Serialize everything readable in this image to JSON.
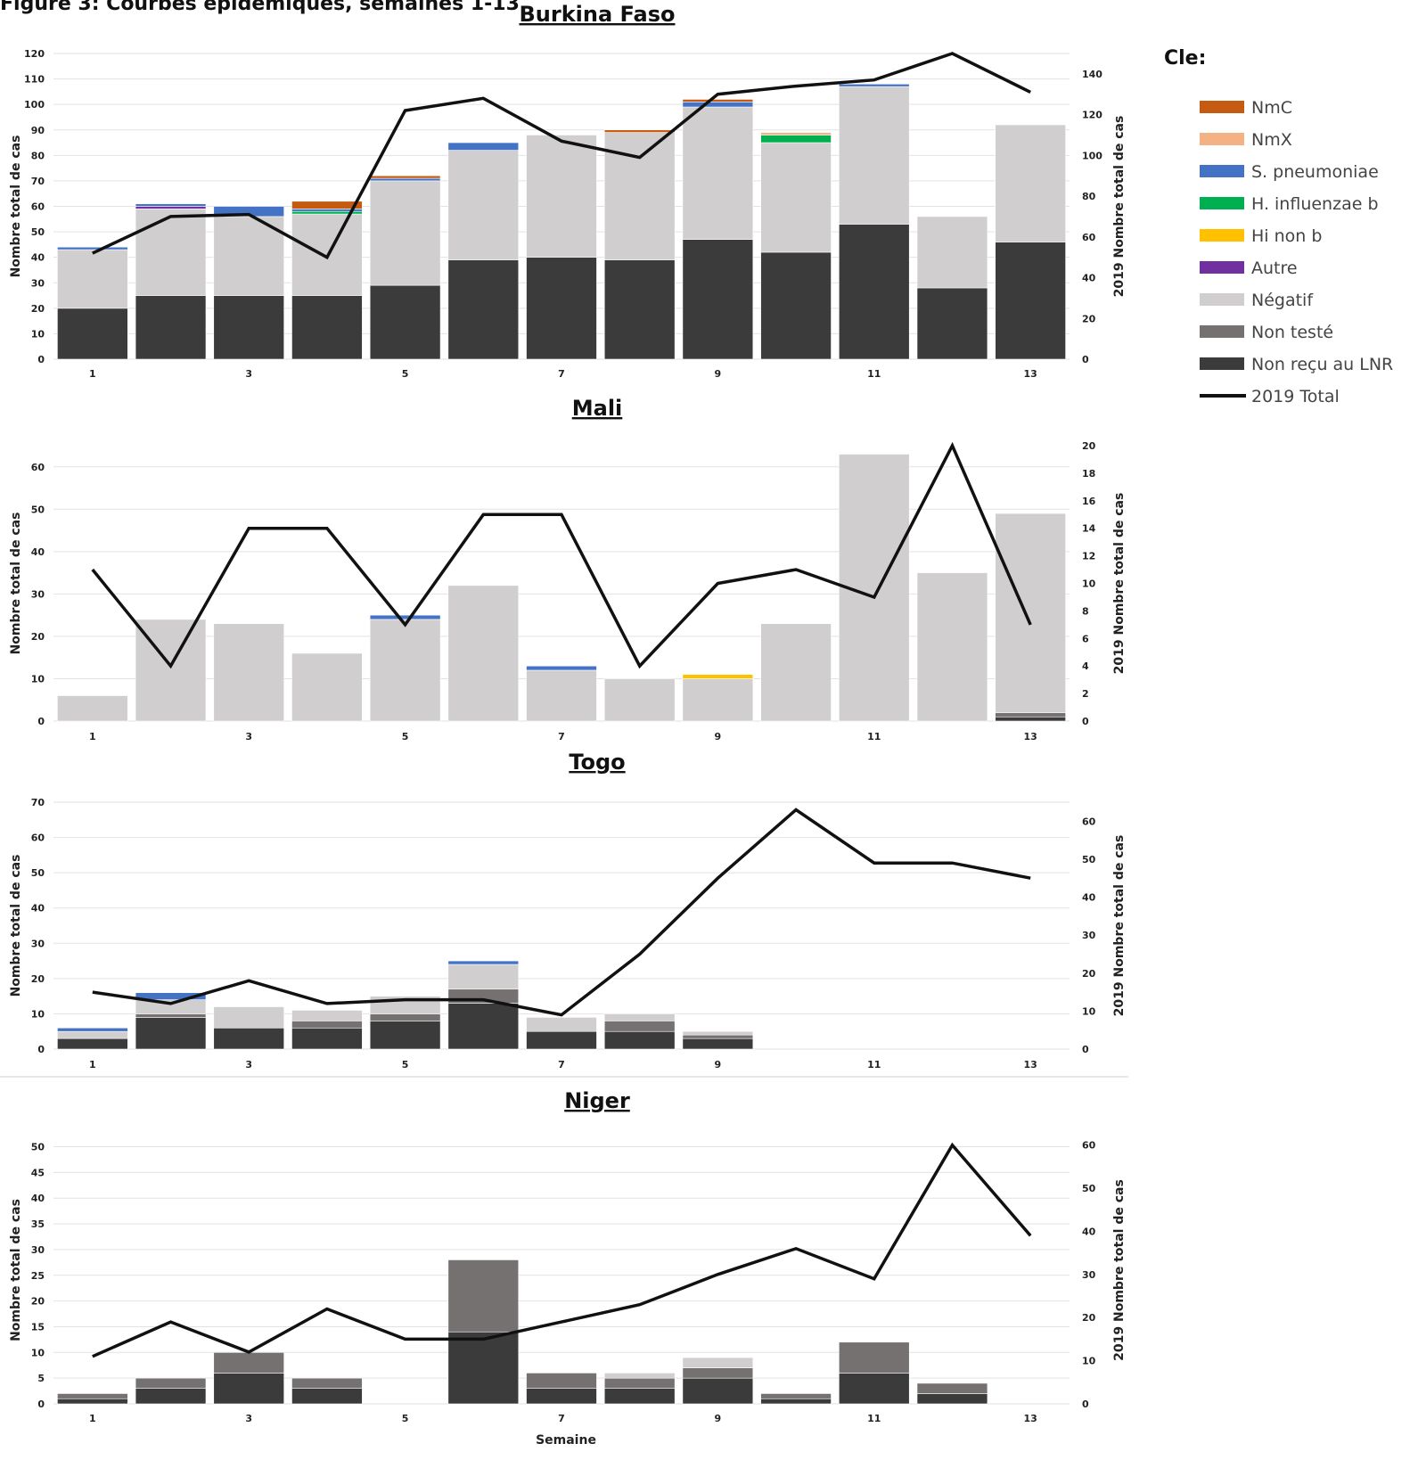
{
  "header": {
    "title": "Figure 3: Courbes épidémiques, semaines 1-13"
  },
  "legend": {
    "title": "Cle:",
    "items": [
      {
        "key": "nmc",
        "label": "NmC",
        "color": "#c55a11",
        "type": "bar"
      },
      {
        "key": "nmx",
        "label": "NmX",
        "color": "#f4b183",
        "type": "bar"
      },
      {
        "key": "spn",
        "label": "S. pneumoniae",
        "color": "#4472c4",
        "type": "bar"
      },
      {
        "key": "hib",
        "label": "H. influenzae b",
        "color": "#00b050",
        "type": "bar"
      },
      {
        "key": "hinb",
        "label": "Hi non b",
        "color": "#ffc000",
        "type": "bar"
      },
      {
        "key": "autre",
        "label": "Autre",
        "color": "#7030a0",
        "type": "bar"
      },
      {
        "key": "neg",
        "label": "Négatif",
        "color": "#d0cece",
        "type": "bar"
      },
      {
        "key": "nt",
        "label": "Non testé",
        "color": "#767171",
        "type": "bar"
      },
      {
        "key": "nr",
        "label": "Non reçu au LNR",
        "color": "#3b3b3b",
        "type": "bar"
      },
      {
        "key": "total2019",
        "label": "2019 Total",
        "color": "#111111",
        "type": "line"
      }
    ]
  },
  "chart_data": [
    {
      "title": "Burkina Faso",
      "type": "bar",
      "stacked": true,
      "x": [
        1,
        2,
        3,
        4,
        5,
        6,
        7,
        8,
        9,
        10,
        11,
        12,
        13
      ],
      "x_tick_labels": [
        "1",
        "3",
        "5",
        "7",
        "9",
        "11",
        "13"
      ],
      "ylabel": "Nombre total de cas",
      "ylabel2": "2019 Nombre total de cas",
      "xlabel": "",
      "ylim": [
        0,
        120
      ],
      "ytick_step": 10,
      "ylim2": [
        0,
        150
      ],
      "ytick_step2": 20,
      "ytick_max2": 140,
      "series": [
        {
          "key": "nr",
          "values": [
            20,
            25,
            25,
            25,
            29,
            39,
            40,
            39,
            47,
            42,
            53,
            28,
            46
          ]
        },
        {
          "key": "nt",
          "values": [
            0,
            0,
            0,
            0,
            0,
            0,
            0,
            0,
            0,
            0,
            0,
            0,
            0
          ]
        },
        {
          "key": "neg",
          "values": [
            23,
            34,
            31,
            32,
            41,
            43,
            48,
            50,
            52,
            43,
            54,
            28,
            46
          ]
        },
        {
          "key": "autre",
          "values": [
            0,
            1,
            0,
            0,
            0,
            0,
            0,
            0,
            0,
            0,
            0,
            0,
            0
          ]
        },
        {
          "key": "hinb",
          "values": [
            0,
            0,
            0,
            0,
            0,
            0,
            0,
            0,
            0,
            0,
            0,
            0,
            0
          ]
        },
        {
          "key": "hib",
          "values": [
            0,
            0,
            0,
            1,
            0,
            0,
            0,
            0,
            0,
            3,
            0,
            0,
            0
          ]
        },
        {
          "key": "spn",
          "values": [
            1,
            1,
            4,
            1,
            1,
            3,
            0,
            0,
            2,
            0,
            1,
            0,
            0
          ]
        },
        {
          "key": "nmx",
          "values": [
            0,
            0,
            0,
            0,
            0,
            0,
            0,
            0,
            0,
            1,
            0,
            0,
            0
          ]
        },
        {
          "key": "nmc",
          "values": [
            0,
            0,
            0,
            3,
            1,
            0,
            0,
            1,
            1,
            0,
            0,
            0,
            0
          ]
        }
      ],
      "total2019": [
        52,
        70,
        71,
        50,
        122,
        128,
        107,
        99,
        130,
        134,
        137,
        150,
        131
      ]
    },
    {
      "title": "Mali",
      "type": "bar",
      "stacked": true,
      "x": [
        1,
        2,
        3,
        4,
        5,
        6,
        7,
        8,
        9,
        10,
        11,
        12,
        13
      ],
      "x_tick_labels": [
        "1",
        "3",
        "5",
        "7",
        "9",
        "11",
        "13"
      ],
      "ylabel": "Nombre total de cas",
      "ylabel2": "2019 Nombre total de cas",
      "xlabel": "",
      "ylim": [
        0,
        65
      ],
      "ytick_step": 10,
      "ytick_max": 60,
      "ylim2": [
        0,
        20
      ],
      "ytick_step2": 2,
      "ytick_max2": 20,
      "series": [
        {
          "key": "nr",
          "values": [
            0,
            0,
            0,
            0,
            0,
            0,
            0,
            0,
            0,
            0,
            0,
            0,
            1
          ]
        },
        {
          "key": "nt",
          "values": [
            0,
            0,
            0,
            0,
            0,
            0,
            0,
            0,
            0,
            0,
            0,
            0,
            1
          ]
        },
        {
          "key": "neg",
          "values": [
            6,
            24,
            23,
            16,
            24,
            32,
            12,
            10,
            10,
            23,
            63,
            35,
            47
          ]
        },
        {
          "key": "autre",
          "values": [
            0,
            0,
            0,
            0,
            0,
            0,
            0,
            0,
            0,
            0,
            0,
            0,
            0
          ]
        },
        {
          "key": "hinb",
          "values": [
            0,
            0,
            0,
            0,
            0,
            0,
            0,
            0,
            1,
            0,
            0,
            0,
            0
          ]
        },
        {
          "key": "hib",
          "values": [
            0,
            0,
            0,
            0,
            0,
            0,
            0,
            0,
            0,
            0,
            0,
            0,
            0
          ]
        },
        {
          "key": "spn",
          "values": [
            0,
            0,
            0,
            0,
            1,
            0,
            1,
            0,
            0,
            0,
            0,
            0,
            0
          ]
        },
        {
          "key": "nmx",
          "values": [
            0,
            0,
            0,
            0,
            0,
            0,
            0,
            0,
            0,
            0,
            0,
            0,
            0
          ]
        },
        {
          "key": "nmc",
          "values": [
            0,
            0,
            0,
            0,
            0,
            0,
            0,
            0,
            0,
            0,
            0,
            0,
            0
          ]
        }
      ],
      "total2019": [
        11,
        4,
        14,
        14,
        7,
        15,
        15,
        4,
        10,
        11,
        9,
        20,
        7
      ]
    },
    {
      "title": "Togo",
      "type": "bar",
      "stacked": true,
      "x": [
        1,
        2,
        3,
        4,
        5,
        6,
        7,
        8,
        9,
        10,
        11,
        12,
        13
      ],
      "x_tick_labels": [
        "1",
        "3",
        "5",
        "7",
        "9",
        "11",
        "13"
      ],
      "ylabel": "Nombre total de cas",
      "ylabel2": "2019 Nombre total de cas",
      "xlabel": "",
      "ylim": [
        0,
        70
      ],
      "ytick_step": 10,
      "ylim2": [
        0,
        65
      ],
      "ytick_step2": 10,
      "ytick_max2": 60,
      "series": [
        {
          "key": "nr",
          "values": [
            3,
            9,
            6,
            6,
            8,
            13,
            5,
            5,
            3,
            0,
            0,
            0,
            0
          ]
        },
        {
          "key": "nt",
          "values": [
            0,
            1,
            0,
            2,
            2,
            4,
            0,
            3,
            1,
            0,
            0,
            0,
            0
          ]
        },
        {
          "key": "neg",
          "values": [
            2,
            4,
            6,
            3,
            5,
            7,
            4,
            2,
            1,
            0,
            0,
            0,
            0
          ]
        },
        {
          "key": "autre",
          "values": [
            0,
            0,
            0,
            0,
            0,
            0,
            0,
            0,
            0,
            0,
            0,
            0,
            0
          ]
        },
        {
          "key": "hinb",
          "values": [
            0,
            0,
            0,
            0,
            0,
            0,
            0,
            0,
            0,
            0,
            0,
            0,
            0
          ]
        },
        {
          "key": "hib",
          "values": [
            0,
            0,
            0,
            0,
            0,
            0,
            0,
            0,
            0,
            0,
            0,
            0,
            0
          ]
        },
        {
          "key": "spn",
          "values": [
            1,
            2,
            0,
            0,
            0,
            1,
            0,
            0,
            0,
            0,
            0,
            0,
            0
          ]
        },
        {
          "key": "nmx",
          "values": [
            0,
            0,
            0,
            0,
            0,
            0,
            0,
            0,
            0,
            0,
            0,
            0,
            0
          ]
        },
        {
          "key": "nmc",
          "values": [
            0,
            0,
            0,
            0,
            0,
            0,
            0,
            0,
            0,
            0,
            0,
            0,
            0
          ]
        }
      ],
      "total2019": [
        15,
        12,
        18,
        12,
        13,
        13,
        9,
        25,
        45,
        63,
        49,
        49,
        45
      ]
    },
    {
      "title": "Niger",
      "type": "bar",
      "stacked": true,
      "x": [
        1,
        2,
        3,
        4,
        5,
        6,
        7,
        8,
        9,
        10,
        11,
        12,
        13
      ],
      "x_tick_labels": [
        "1",
        "3",
        "5",
        "7",
        "9",
        "11",
        "13"
      ],
      "ylabel": "Nombre total de cas",
      "ylabel2": "2019 Nombre total de cas",
      "xlabel": "Semaine",
      "ylim": [
        0,
        52
      ],
      "ytick_step": 5,
      "ytick_max": 50,
      "ylim2": [
        0,
        62
      ],
      "ytick_step2": 10,
      "ytick_max2": 60,
      "series": [
        {
          "key": "nr",
          "values": [
            1,
            3,
            6,
            3,
            0,
            14,
            3,
            3,
            5,
            1,
            6,
            2,
            0
          ]
        },
        {
          "key": "nt",
          "values": [
            1,
            2,
            4,
            2,
            0,
            14,
            3,
            2,
            2,
            1,
            6,
            2,
            0
          ]
        },
        {
          "key": "neg",
          "values": [
            0,
            0,
            0,
            0,
            0,
            0,
            0,
            1,
            2,
            0,
            0,
            0,
            0
          ]
        },
        {
          "key": "autre",
          "values": [
            0,
            0,
            0,
            0,
            0,
            0,
            0,
            0,
            0,
            0,
            0,
            0,
            0
          ]
        },
        {
          "key": "hinb",
          "values": [
            0,
            0,
            0,
            0,
            0,
            0,
            0,
            0,
            0,
            0,
            0,
            0,
            0
          ]
        },
        {
          "key": "hib",
          "values": [
            0,
            0,
            0,
            0,
            0,
            0,
            0,
            0,
            0,
            0,
            0,
            0,
            0
          ]
        },
        {
          "key": "spn",
          "values": [
            0,
            0,
            0,
            0,
            0,
            0,
            0,
            0,
            0,
            0,
            0,
            0,
            0
          ]
        },
        {
          "key": "nmx",
          "values": [
            0,
            0,
            0,
            0,
            0,
            0,
            0,
            0,
            0,
            0,
            0,
            0,
            0
          ]
        },
        {
          "key": "nmc",
          "values": [
            0,
            0,
            0,
            0,
            0,
            0,
            0,
            0,
            0,
            0,
            0,
            0,
            0
          ]
        }
      ],
      "total2019": [
        11,
        19,
        12,
        22,
        15,
        15,
        19,
        23,
        30,
        36,
        29,
        60,
        39
      ]
    }
  ]
}
